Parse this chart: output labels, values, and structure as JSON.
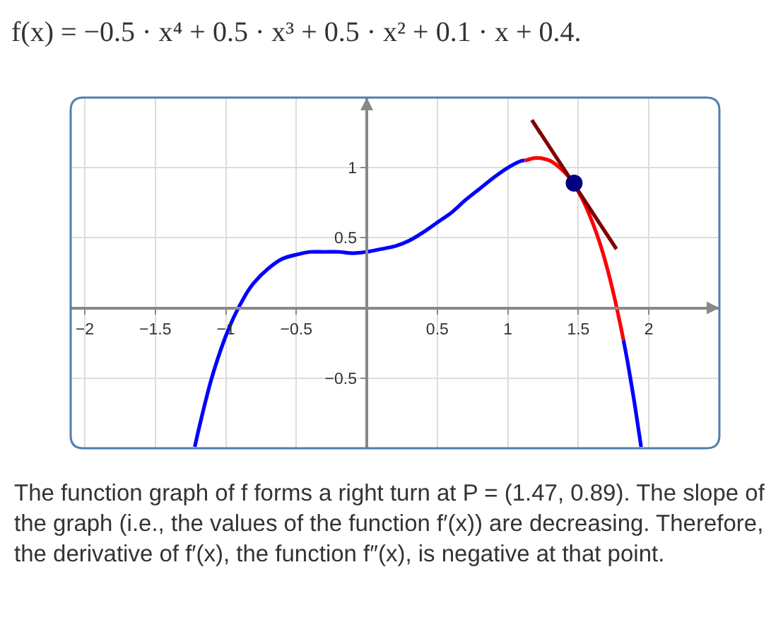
{
  "chart_data": {
    "type": "line",
    "title": "f(x) = −0.5 · x⁴ + 0.5 · x³ + 0.5 · x² + 0.1 · x + 0.4.",
    "annotations": [
      "The function graph of f forms a right turn at P = (1.47, 0.89). The slope of the graph (i.e., the values of the function f′(x)) are decreasing. Therefore, the derivative of f′(x), the function f″(x), is negative at that point."
    ],
    "xlim": [
      -2.1,
      2.5
    ],
    "ylim": [
      -1,
      1.5
    ],
    "xticks": [
      -2,
      -1.5,
      -1,
      -0.5,
      0.5,
      1,
      1.5,
      2
    ],
    "yticks": [
      -0.5,
      0.5,
      1
    ],
    "grid": true,
    "series": [
      {
        "color": "#0000ff",
        "x": [
          -1.22,
          -1.2,
          -1.15,
          -1.1,
          -1.05,
          -1.0,
          -0.95,
          -0.9,
          -0.85,
          -0.8,
          -0.7,
          -0.6,
          -0.5,
          -0.4,
          -0.3,
          -0.2,
          -0.1,
          0,
          0.1,
          0.2,
          0.3,
          0.4,
          0.5,
          0.6,
          0.7,
          0.8,
          0.9,
          1.0,
          1.1,
          1.12
        ],
        "values": [
          -0.99,
          -0.9,
          -0.69,
          -0.5,
          -0.34,
          -0.2,
          -0.08,
          0.02,
          0.11,
          0.18,
          0.28,
          0.35,
          0.38,
          0.4,
          0.4,
          0.4,
          0.39,
          0.4,
          0.42,
          0.44,
          0.48,
          0.54,
          0.61,
          0.68,
          0.77,
          0.85,
          0.93,
          1.0,
          1.05,
          1.05
        ]
      },
      {
        "color": "#ff0000",
        "x": [
          1.12,
          1.2,
          1.3,
          1.4,
          1.45,
          1.5,
          1.55,
          1.6,
          1.65,
          1.7,
          1.75,
          1.8,
          1.82
        ],
        "values": [
          1.05,
          1.07,
          1.05,
          0.97,
          0.91,
          0.83,
          0.73,
          0.61,
          0.47,
          0.3,
          0.1,
          -0.13,
          -0.23
        ]
      },
      {
        "color": "#0000ff",
        "x": [
          1.82,
          1.85,
          1.9,
          1.945
        ],
        "values": [
          -0.23,
          -0.39,
          -0.69,
          -0.99
        ]
      },
      {
        "color": "#800000",
        "x": [
          1.17,
          1.77
        ],
        "values": [
          1.34,
          0.42
        ]
      },
      {
        "type": "scatter",
        "marker": "circle",
        "color": "#000080",
        "x": [
          1.47
        ],
        "values": [
          0.89
        ]
      }
    ]
  }
}
